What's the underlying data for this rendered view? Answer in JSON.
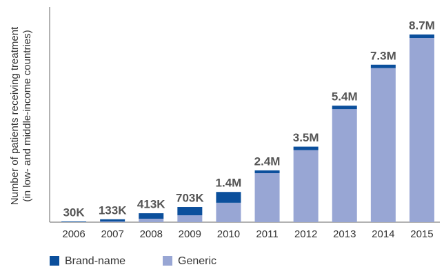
{
  "chart_data": {
    "type": "stacked_bar",
    "y_label": [
      "Number of patients receiving treatment",
      "(in low- and middle-income countries)"
    ],
    "categories": [
      "2006",
      "2007",
      "2008",
      "2009",
      "2010",
      "2011",
      "2012",
      "2013",
      "2014",
      "2015"
    ],
    "series": [
      {
        "name": "Brand-name",
        "color": "#0b4f9c",
        "values": [
          30000,
          100000,
          253000,
          383000,
          500000,
          130000,
          160000,
          160000,
          160000,
          160000
        ]
      },
      {
        "name": "Generic",
        "color": "#98a6d4",
        "values": [
          0,
          33000,
          160000,
          320000,
          900000,
          2270000,
          3340000,
          5240000,
          7140000,
          8540000
        ]
      }
    ],
    "totals": {
      "values": [
        30000,
        133000,
        413000,
        703000,
        1400000,
        2400000,
        3500000,
        5400000,
        7300000,
        8700000
      ],
      "value_labels": [
        "30K",
        "133K",
        "413K",
        "703K",
        "1.4M",
        "2.4M",
        "3.5M",
        "5.4M",
        "7.3M",
        "8.7M"
      ]
    },
    "legend": "bottom-left"
  }
}
